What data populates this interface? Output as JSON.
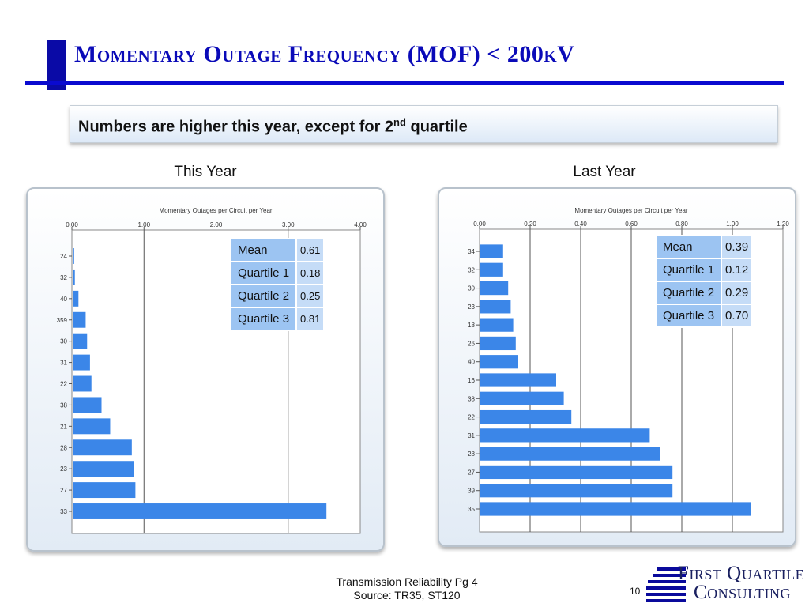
{
  "header": {
    "title": "Momentary Outage Frequency (MOF) < 200kV"
  },
  "banner": {
    "text_before": "Numbers are higher this year, except for 2",
    "superscript": "nd",
    "text_after": " quartile"
  },
  "chart_data": [
    {
      "type": "bar",
      "orientation": "horizontal",
      "label": "This Year",
      "title": "Momentary Outages per Circuit per Year",
      "categories": [
        "24",
        "32",
        "40",
        "359",
        "30",
        "31",
        "22",
        "38",
        "21",
        "28",
        "23",
        "27",
        "33"
      ],
      "values": [
        0.02,
        0.03,
        0.08,
        0.18,
        0.2,
        0.24,
        0.26,
        0.4,
        0.52,
        0.82,
        0.85,
        0.87,
        3.52
      ],
      "xlim": [
        0,
        4
      ],
      "ticks": [
        "0.00",
        "1.00",
        "2.00",
        "3.00",
        "4.00"
      ],
      "grid": true,
      "color": "#3b86e8",
      "stats": [
        {
          "label": "Mean",
          "value": "0.61"
        },
        {
          "label": "Quartile 1",
          "value": "0.18"
        },
        {
          "label": "Quartile 2",
          "value": "0.25"
        },
        {
          "label": "Quartile 3",
          "value": "0.81"
        }
      ]
    },
    {
      "type": "bar",
      "orientation": "horizontal",
      "label": "Last Year",
      "title": "Momentary Outages per Circuit per Year",
      "categories": [
        "34",
        "32",
        "30",
        "23",
        "18",
        "26",
        "40",
        "16",
        "38",
        "22",
        "31",
        "28",
        "27",
        "39",
        "35"
      ],
      "values": [
        0.09,
        0.09,
        0.11,
        0.12,
        0.13,
        0.14,
        0.15,
        0.3,
        0.33,
        0.36,
        0.67,
        0.71,
        0.76,
        0.76,
        1.07
      ],
      "xlim": [
        0,
        1.2
      ],
      "ticks": [
        "0.00",
        "0.20",
        "0.40",
        "0.60",
        "0.80",
        "1.00",
        "1.20"
      ],
      "grid": true,
      "color": "#3b86e8",
      "stats": [
        {
          "label": "Mean",
          "value": "0.39"
        },
        {
          "label": "Quartile 1",
          "value": "0.12"
        },
        {
          "label": "Quartile 2",
          "value": "0.29"
        },
        {
          "label": "Quartile 3",
          "value": "0.70"
        }
      ]
    }
  ],
  "footer": {
    "line1": "Transmission Reliability Pg 4",
    "line2": "Source: TR35, ST120",
    "page_number": "10"
  },
  "logo": {
    "line1": "First Quartile",
    "line2": "Consulting"
  }
}
